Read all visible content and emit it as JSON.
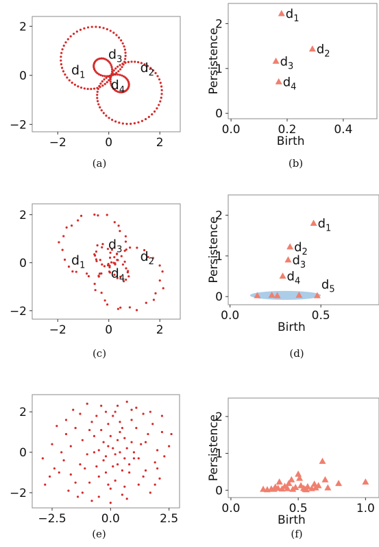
{
  "captions": [
    "(a)",
    "(b)",
    "(c)",
    "(d)",
    "(e)",
    "(f)"
  ],
  "colors": {
    "scatter": "#d42a2a",
    "triangle": "#f07f6e",
    "highlight": "#9cc4e4"
  },
  "chart_data": [
    {
      "type": "scatter",
      "caption": "(a)",
      "noise": 0,
      "xticks": [
        -2,
        0,
        2
      ],
      "yticks": [
        -2,
        0,
        2
      ],
      "xlim": [
        -3.0,
        2.8
      ],
      "ylim": [
        -2.3,
        2.4
      ],
      "regions": [
        {
          "base": "d",
          "sub": "1",
          "x": -1.2,
          "y": 0.2
        },
        {
          "base": "d",
          "sub": "2",
          "x": 1.5,
          "y": 0.3
        },
        {
          "base": "d",
          "sub": "3",
          "x": 0.25,
          "y": 0.85
        },
        {
          "base": "d",
          "sub": "4",
          "x": 0.35,
          "y": -0.4
        }
      ]
    },
    {
      "type": "scatter",
      "marker": "triangle",
      "caption": "(b)",
      "xlabel": "Birth",
      "ylabel": "Persistence",
      "xticks": [
        0.0,
        0.2,
        0.4
      ],
      "xtick_labels": [
        "0.0",
        "0.2",
        "0.4"
      ],
      "yticks": [
        0,
        1,
        2
      ],
      "ytick_labels": [
        "0",
        "1",
        "2"
      ],
      "xlim": [
        -0.01,
        0.52
      ],
      "ylim": [
        -0.12,
        2.45
      ],
      "points": [
        {
          "x": 0.18,
          "y": 2.22,
          "base": "d",
          "sub": "1"
        },
        {
          "x": 0.29,
          "y": 1.43,
          "base": "d",
          "sub": "2"
        },
        {
          "x": 0.16,
          "y": 1.16,
          "base": "d",
          "sub": "3"
        },
        {
          "x": 0.17,
          "y": 0.7,
          "base": "d",
          "sub": "4"
        }
      ]
    },
    {
      "type": "scatter",
      "caption": "(c)",
      "noise": 0.12,
      "xticks": [
        -2,
        0,
        2
      ],
      "yticks": [
        -2,
        0,
        2
      ],
      "xlim": [
        -3.0,
        2.8
      ],
      "ylim": [
        -2.35,
        2.45
      ],
      "regions": [
        {
          "base": "d",
          "sub": "1",
          "x": -1.2,
          "y": 0.1
        },
        {
          "base": "d",
          "sub": "2",
          "x": 1.5,
          "y": 0.25
        },
        {
          "base": "d",
          "sub": "3",
          "x": 0.25,
          "y": 0.75
        },
        {
          "base": "d",
          "sub": "4",
          "x": 0.35,
          "y": -0.45
        }
      ]
    },
    {
      "type": "scatter",
      "marker": "triangle",
      "caption": "(d)",
      "xlabel": "Birth",
      "ylabel": "Persistence",
      "xticks": [
        0.0,
        0.5
      ],
      "xtick_labels": [
        "0.0",
        "0.5"
      ],
      "yticks": [
        0,
        1,
        2
      ],
      "ytick_labels": [
        "0",
        "1",
        "2"
      ],
      "xlim": [
        -0.01,
        0.82
      ],
      "ylim": [
        -0.2,
        2.5
      ],
      "highlight": {
        "cx": 0.305,
        "cy": 0.03,
        "rx": 0.195,
        "ry": 0.11
      },
      "points": [
        {
          "x": 0.46,
          "y": 1.8,
          "base": "d",
          "sub": "1"
        },
        {
          "x": 0.33,
          "y": 1.22,
          "base": "d",
          "sub": "2"
        },
        {
          "x": 0.32,
          "y": 0.9,
          "base": "d",
          "sub": "3"
        },
        {
          "x": 0.29,
          "y": 0.5,
          "base": "d",
          "sub": "4"
        },
        {
          "x": 0.15,
          "y": 0.02
        },
        {
          "x": 0.23,
          "y": 0.03
        },
        {
          "x": 0.26,
          "y": 0.02
        },
        {
          "x": 0.38,
          "y": 0.03
        },
        {
          "x": 0.48,
          "y": 0.02,
          "base": "d",
          "sub": "5",
          "label_dx": 0.0,
          "label_dy": 0.28
        }
      ]
    },
    {
      "type": "scatter",
      "caption": "(e)",
      "xticks": [
        -2.5,
        0.0,
        2.5
      ],
      "xtick_labels": [
        "−2.5",
        "0.0",
        "2.5"
      ],
      "yticks": [
        -2,
        0,
        2
      ],
      "ytick_labels": [
        "−2",
        "0",
        "2"
      ],
      "xlim": [
        -3.35,
        2.95
      ],
      "ylim": [
        -2.75,
        2.85
      ],
      "points": [
        [
          -2.8,
          -1.6
        ],
        [
          -2.6,
          -1.2
        ],
        [
          -2.5,
          0.4
        ],
        [
          -2.3,
          1.3
        ],
        [
          -2.2,
          -1.0
        ],
        [
          -2.0,
          -0.4
        ],
        [
          -1.9,
          1.6
        ],
        [
          -1.8,
          -1.9
        ],
        [
          -1.7,
          0.3
        ],
        [
          -1.6,
          2.1
        ],
        [
          -1.5,
          -1.5
        ],
        [
          -1.4,
          -2.2
        ],
        [
          -1.3,
          1.9
        ],
        [
          -1.2,
          0.6
        ],
        [
          -1.1,
          -0.8
        ],
        [
          -1.0,
          2.4
        ],
        [
          -0.9,
          1.1
        ],
        [
          -0.8,
          -2.4
        ],
        [
          -0.7,
          0.0
        ],
        [
          -0.6,
          1.8
        ],
        [
          -0.5,
          -1.2
        ],
        [
          -0.4,
          2.3
        ],
        [
          -0.3,
          0.5
        ],
        [
          -0.2,
          -0.2
        ],
        [
          -0.1,
          1.4
        ],
        [
          0.0,
          -1.8
        ],
        [
          0.1,
          0.2
        ],
        [
          0.2,
          2.0
        ],
        [
          0.3,
          -0.6
        ],
        [
          0.4,
          1.0
        ],
        [
          0.5,
          -2.1
        ],
        [
          0.6,
          0.7
        ],
        [
          0.7,
          2.5
        ],
        [
          0.8,
          -1.0
        ],
        [
          0.9,
          1.6
        ],
        [
          1.0,
          -0.3
        ],
        [
          1.1,
          2.2
        ],
        [
          1.2,
          -1.6
        ],
        [
          1.3,
          0.4
        ],
        [
          1.4,
          1.9
        ],
        [
          1.5,
          -0.9
        ],
        [
          1.6,
          0.9
        ],
        [
          1.7,
          -2.0
        ],
        [
          1.8,
          1.4
        ],
        [
          1.9,
          -0.5
        ],
        [
          2.0,
          0.1
        ],
        [
          2.1,
          -1.3
        ],
        [
          2.2,
          1.0
        ],
        [
          2.3,
          -0.2
        ],
        [
          2.5,
          0.3
        ],
        [
          -0.3,
          -0.4
        ],
        [
          0.2,
          -0.1
        ],
        [
          0.4,
          0.0
        ],
        [
          -0.1,
          0.3
        ],
        [
          0.6,
          -0.3
        ],
        [
          0.1,
          -0.7
        ],
        [
          0.3,
          0.6
        ],
        [
          -0.5,
          0.1
        ],
        [
          0.7,
          0.2
        ],
        [
          0.0,
          0.8
        ],
        [
          -0.2,
          -1.0
        ],
        [
          0.5,
          1.2
        ],
        [
          0.8,
          -0.6
        ],
        [
          -0.6,
          -0.7
        ],
        [
          0.9,
          0.5
        ],
        [
          -0.4,
          1.1
        ],
        [
          1.0,
          0.0
        ],
        [
          0.2,
          -1.4
        ],
        [
          0.4,
          1.5
        ],
        [
          -0.7,
          0.8
        ],
        [
          -2.9,
          -0.3
        ],
        [
          2.6,
          0.9
        ],
        [
          -1.0,
          -0.1
        ],
        [
          1.2,
          -0.3
        ],
        [
          -1.3,
          -0.6
        ],
        [
          0.0,
          -2.5
        ],
        [
          0.6,
          -1.7
        ],
        [
          -0.9,
          -1.5
        ],
        [
          1.4,
          -1.2
        ],
        [
          -1.9,
          0.9
        ],
        [
          2.2,
          1.8
        ],
        [
          -2.4,
          -0.8
        ],
        [
          1.7,
          2.0
        ],
        [
          -1.5,
          1.2
        ],
        [
          0.3,
          2.3
        ],
        [
          -0.2,
          2.0
        ],
        [
          0.9,
          2.1
        ],
        [
          -1.2,
          -2.0
        ],
        [
          1.9,
          -1.6
        ],
        [
          -0.5,
          -2.2
        ],
        [
          0.1,
          1.8
        ],
        [
          -0.8,
          1.5
        ],
        [
          1.1,
          1.2
        ],
        [
          -1.7,
          -1.1
        ],
        [
          2.0,
          -0.8
        ],
        [
          -2.1,
          0.0
        ],
        [
          0.5,
          -0.9
        ],
        [
          -0.1,
          -1.6
        ],
        [
          0.7,
          -2.3
        ],
        [
          1.5,
          0.5
        ]
      ]
    },
    {
      "type": "scatter",
      "marker": "triangle",
      "caption": "(f)",
      "xlabel": "Birth",
      "ylabel": "Persistence",
      "xticks": [
        0.0,
        0.5,
        1.0
      ],
      "xtick_labels": [
        "0.0",
        "0.5",
        "1.0"
      ],
      "yticks": [
        0,
        1,
        2
      ],
      "ytick_labels": [
        "0",
        "1",
        "2"
      ],
      "xlim": [
        -0.02,
        1.1
      ],
      "ylim": [
        -0.2,
        2.5
      ],
      "points": [
        [
          0.24,
          0.02
        ],
        [
          0.27,
          0.01
        ],
        [
          0.3,
          0.03
        ],
        [
          0.32,
          0.02
        ],
        [
          0.35,
          0.05
        ],
        [
          0.36,
          0.22
        ],
        [
          0.38,
          0.03
        ],
        [
          0.4,
          0.1
        ],
        [
          0.42,
          0.04
        ],
        [
          0.43,
          0.18
        ],
        [
          0.45,
          0.28
        ],
        [
          0.46,
          0.02
        ],
        [
          0.48,
          0.07
        ],
        [
          0.5,
          0.43
        ],
        [
          0.51,
          0.32
        ],
        [
          0.52,
          0.12
        ],
        [
          0.54,
          0.05
        ],
        [
          0.55,
          0.02
        ],
        [
          0.57,
          0.09
        ],
        [
          0.6,
          0.04
        ],
        [
          0.62,
          0.16
        ],
        [
          0.63,
          0.06
        ],
        [
          0.65,
          0.12
        ],
        [
          0.68,
          0.78
        ],
        [
          0.7,
          0.28
        ],
        [
          0.72,
          0.06
        ],
        [
          0.8,
          0.18
        ],
        [
          1.0,
          0.22
        ],
        [
          0.33,
          0.08
        ],
        [
          0.56,
          0.01
        ]
      ]
    }
  ]
}
